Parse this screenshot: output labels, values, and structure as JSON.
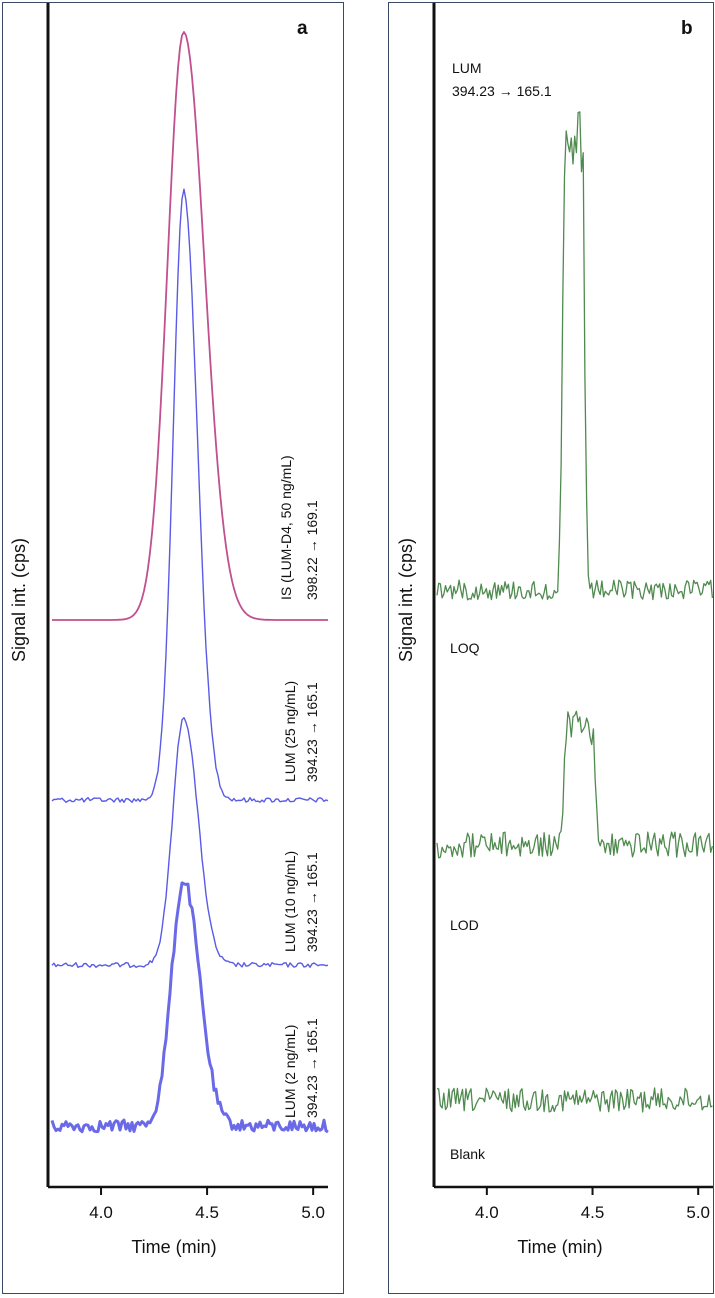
{
  "chart_data": [
    {
      "panel": "a",
      "type": "line",
      "xlabel": "Time (min)",
      "ylabel": "Signal int. (cps)",
      "xlim": [
        3.75,
        5.07
      ],
      "xticks": [
        "4.0",
        "4.5",
        "5.0"
      ],
      "grid": false,
      "series": [
        {
          "name": "IS (LUM-D4, 50 ng/mL)",
          "transition": "398.22 → 169.1",
          "color": "#c0508f",
          "baseline": 0,
          "peak_time": 4.39,
          "peak_height": 1.0,
          "noise": 0.0
        },
        {
          "name": "LUM (25 ng/mL)",
          "transition": "394.23 → 165.1",
          "color": "#5a5ae6",
          "baseline": 0,
          "peak_time": 4.39,
          "peak_height": 1.0,
          "noise": 0.012
        },
        {
          "name": "LUM (10 ng/mL)",
          "transition": "394.23 → 165.1",
          "color": "#5a5ae6",
          "baseline": 0,
          "peak_time": 4.39,
          "peak_height": 1.0,
          "noise": 0.012
        },
        {
          "name": "LUM (2 ng/mL)",
          "transition": "394.23 → 165.1",
          "color": "#6a6ae8",
          "baseline": 0,
          "peak_time": 4.39,
          "peak_height": 1.0,
          "noise": 0.03
        }
      ]
    },
    {
      "panel": "b",
      "type": "line",
      "xlabel": "Time (min)",
      "ylabel": "Signal int. (cps)",
      "xlim": [
        3.75,
        5.07
      ],
      "xticks": [
        "4.0",
        "4.5",
        "5.0"
      ],
      "grid": false,
      "header_label": "LUM",
      "header_transition": "394.23 → 165.1",
      "series": [
        {
          "name": "LOQ",
          "color": "#4f8a4f",
          "peak_time": 4.41,
          "peak_height": 1.0,
          "noise": 0.08
        },
        {
          "name": "LOD",
          "color": "#4f8a4f",
          "peak_time": 4.44,
          "peak_height": 1.0,
          "noise": 0.3
        },
        {
          "name": "Blank",
          "color": "#4f8a4f",
          "peak_time": null,
          "peak_height": 0,
          "noise": 1.0
        }
      ]
    }
  ],
  "panel_a": {
    "letter": "a"
  },
  "panel_b": {
    "letter": "b"
  }
}
